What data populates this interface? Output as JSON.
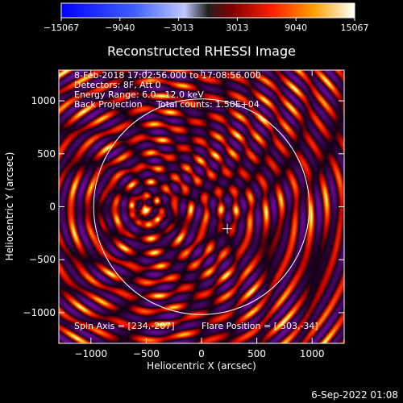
{
  "chart_data": {
    "type": "heatmap",
    "title": "Reconstructed RHESSI Image",
    "xlabel": "Heliocentric X (arcsec)",
    "ylabel": "Heliocentric Y (arcsec)",
    "xlim": [
      -1290,
      1290
    ],
    "ylim": [
      -1290,
      1290
    ],
    "xticks": [
      -1000,
      -500,
      0,
      500,
      1000
    ],
    "yticks": [
      1000,
      500,
      0,
      -500,
      -1000
    ],
    "colorbar": {
      "min": -15067,
      "max": 15067,
      "ticks": [
        -15067,
        -9040,
        -3013,
        3013,
        9040,
        15067
      ]
    },
    "info_lines": [
      "8-Feb-2018 17:02:56.000 to 17:08:56.000",
      "Detectors: 8F, Att 0",
      "Energy Range: 6.0 - 12.0 keV",
      "Back Projection     Total counts: 1.50E+04"
    ],
    "spin_axis_label": "Spin Axis = [234,-207]",
    "flare_position_label": "Flare Position = [-503,-34]",
    "flare_position": [
      -503,
      -34
    ],
    "spin_axis": [
      234,
      -207
    ],
    "solar_disk_radius": 975
  },
  "footer_date": "6-Sep-2022 01:08"
}
